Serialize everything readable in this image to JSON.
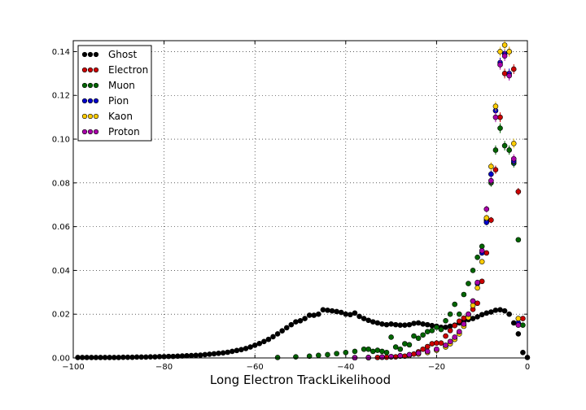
{
  "chart_data": {
    "type": "scatter",
    "title": "",
    "xlabel": "Long Electron TrackLikelihood",
    "ylabel": "",
    "xlim": [
      -100,
      0
    ],
    "ylim": [
      0,
      0.145
    ],
    "xticks": [
      -100,
      -80,
      -60,
      -40,
      -20,
      0
    ],
    "xtick_labels": [
      "−100",
      "−80",
      "−60",
      "−40",
      "−20",
      "0"
    ],
    "yticks": [
      0.0,
      0.02,
      0.04,
      0.06,
      0.08,
      0.1,
      0.12,
      0.14
    ],
    "ytick_labels": [
      "0.00",
      "0.02",
      "0.04",
      "0.06",
      "0.08",
      "0.10",
      "0.12",
      "0.14"
    ],
    "grid": true,
    "legend_position": "top-left",
    "series": [
      {
        "name": "Ghost",
        "color": "#000000",
        "points": [
          [
            -99,
            0.0002
          ],
          [
            -98,
            0.0002
          ],
          [
            -97,
            0.0002
          ],
          [
            -96,
            0.0002
          ],
          [
            -95,
            0.0002
          ],
          [
            -94,
            0.0002
          ],
          [
            -93,
            0.0002
          ],
          [
            -92,
            0.0002
          ],
          [
            -91,
            0.0002
          ],
          [
            -90,
            0.0002
          ],
          [
            -89,
            0.0003
          ],
          [
            -88,
            0.0003
          ],
          [
            -87,
            0.0003
          ],
          [
            -86,
            0.0004
          ],
          [
            -85,
            0.0004
          ],
          [
            -84,
            0.0004
          ],
          [
            -83,
            0.0005
          ],
          [
            -82,
            0.0005
          ],
          [
            -81,
            0.0006
          ],
          [
            -80,
            0.0006
          ],
          [
            -79,
            0.0007
          ],
          [
            -78,
            0.0007
          ],
          [
            -77,
            0.0008
          ],
          [
            -76,
            0.0009
          ],
          [
            -75,
            0.001
          ],
          [
            -74,
            0.0011
          ],
          [
            -73,
            0.0012
          ],
          [
            -72,
            0.0013
          ],
          [
            -71,
            0.0015
          ],
          [
            -70,
            0.0017
          ],
          [
            -69,
            0.0019
          ],
          [
            -68,
            0.0021
          ],
          [
            -67,
            0.0023
          ],
          [
            -66,
            0.0026
          ],
          [
            -65,
            0.003
          ],
          [
            -64,
            0.0034
          ],
          [
            -63,
            0.0038
          ],
          [
            -62,
            0.0043
          ],
          [
            -61,
            0.005
          ],
          [
            -60,
            0.0058
          ],
          [
            -59,
            0.0066
          ],
          [
            -58,
            0.0075
          ],
          [
            -57,
            0.0085
          ],
          [
            -56,
            0.0097
          ],
          [
            -55,
            0.011
          ],
          [
            -54,
            0.0124
          ],
          [
            -53,
            0.0138
          ],
          [
            -52,
            0.0152
          ],
          [
            -51,
            0.0165
          ],
          [
            -50,
            0.017
          ],
          [
            -49,
            0.018
          ],
          [
            -48,
            0.0195
          ],
          [
            -47,
            0.0195
          ],
          [
            -46,
            0.02
          ],
          [
            -45,
            0.022
          ],
          [
            -44,
            0.0218
          ],
          [
            -43,
            0.0215
          ],
          [
            -42,
            0.0212
          ],
          [
            -41,
            0.0208
          ],
          [
            -40,
            0.02
          ],
          [
            -39,
            0.0198
          ],
          [
            -38,
            0.0205
          ],
          [
            -37,
            0.019
          ],
          [
            -36,
            0.018
          ],
          [
            -35,
            0.0172
          ],
          [
            -34,
            0.0165
          ],
          [
            -33,
            0.016
          ],
          [
            -32,
            0.0155
          ],
          [
            -31,
            0.0152
          ],
          [
            -30,
            0.0155
          ],
          [
            -29,
            0.0152
          ],
          [
            -28,
            0.015
          ],
          [
            -27,
            0.015
          ],
          [
            -26,
            0.0152
          ],
          [
            -25,
            0.0158
          ],
          [
            -24,
            0.016
          ],
          [
            -23,
            0.0155
          ],
          [
            -22,
            0.0152
          ],
          [
            -21,
            0.0148
          ],
          [
            -20,
            0.0145
          ],
          [
            -19,
            0.014
          ],
          [
            -18,
            0.014
          ],
          [
            -17,
            0.0145
          ],
          [
            -16,
            0.015
          ],
          [
            -15,
            0.016
          ],
          [
            -14,
            0.0168
          ],
          [
            -13,
            0.0175
          ],
          [
            -12,
            0.018
          ],
          [
            -11,
            0.0188
          ],
          [
            -10,
            0.0198
          ],
          [
            -9,
            0.0205
          ],
          [
            -8,
            0.021
          ],
          [
            -7,
            0.0218
          ],
          [
            -6,
            0.022
          ],
          [
            -5,
            0.0215
          ],
          [
            -4,
            0.02
          ],
          [
            -3,
            0.016
          ],
          [
            -2,
            0.011
          ],
          [
            -1,
            0.0025
          ],
          [
            0,
            0.0002
          ]
        ]
      },
      {
        "name": "Electron",
        "color": "#cc0000",
        "points": [
          [
            -35,
            0.0001
          ],
          [
            -33,
            0.0002
          ],
          [
            -31,
            0.0003
          ],
          [
            -29,
            0.0005
          ],
          [
            -27,
            0.0008
          ],
          [
            -26,
            0.0012
          ],
          [
            -25,
            0.0018
          ],
          [
            -24,
            0.0028
          ],
          [
            -23,
            0.004
          ],
          [
            -22,
            0.0052
          ],
          [
            -21,
            0.0065
          ],
          [
            -20,
            0.0068
          ],
          [
            -19,
            0.0068
          ],
          [
            -18,
            0.01
          ],
          [
            -17,
            0.0125
          ],
          [
            -16,
            0.0148
          ],
          [
            -15,
            0.0168
          ],
          [
            -14,
            0.0182
          ],
          [
            -13,
            0.02
          ],
          [
            -12,
            0.0222
          ],
          [
            -11,
            0.025
          ],
          [
            -10,
            0.035
          ],
          [
            -9,
            0.048
          ],
          [
            -8,
            0.063
          ],
          [
            -7,
            0.086
          ],
          [
            -6,
            0.11
          ],
          [
            -5,
            0.13
          ],
          [
            -4,
            0.14
          ],
          [
            -3,
            0.132
          ],
          [
            -2,
            0.076
          ],
          [
            -1,
            0.018
          ]
        ]
      },
      {
        "name": "Muon",
        "color": "#006600",
        "points": [
          [
            -55,
            0.0002
          ],
          [
            -51,
            0.0005
          ],
          [
            -48,
            0.0008
          ],
          [
            -46,
            0.0012
          ],
          [
            -44,
            0.0015
          ],
          [
            -42,
            0.002
          ],
          [
            -40,
            0.0025
          ],
          [
            -38,
            0.003
          ],
          [
            -36,
            0.004
          ],
          [
            -35,
            0.004
          ],
          [
            -34,
            0.003
          ],
          [
            -33,
            0.0035
          ],
          [
            -32,
            0.003
          ],
          [
            -31,
            0.0025
          ],
          [
            -30,
            0.0095
          ],
          [
            -29,
            0.005
          ],
          [
            -28,
            0.004
          ],
          [
            -27,
            0.0065
          ],
          [
            -26,
            0.006
          ],
          [
            -25,
            0.01
          ],
          [
            -24,
            0.009
          ],
          [
            -23,
            0.0105
          ],
          [
            -22,
            0.012
          ],
          [
            -21,
            0.0125
          ],
          [
            -20,
            0.014
          ],
          [
            -19,
            0.013
          ],
          [
            -18,
            0.017
          ],
          [
            -17,
            0.02
          ],
          [
            -16,
            0.0245
          ],
          [
            -15,
            0.02
          ],
          [
            -14,
            0.029
          ],
          [
            -13,
            0.034
          ],
          [
            -12,
            0.04
          ],
          [
            -11,
            0.046
          ],
          [
            -10,
            0.051
          ],
          [
            -9,
            0.063
          ],
          [
            -8,
            0.08
          ],
          [
            -7,
            0.095
          ],
          [
            -6,
            0.105
          ],
          [
            -5,
            0.097
          ],
          [
            -4,
            0.095
          ],
          [
            -3,
            0.089
          ],
          [
            -2,
            0.054
          ],
          [
            -1,
            0.015
          ]
        ]
      },
      {
        "name": "Pion",
        "color": "#0000cc",
        "points": [
          [
            -38,
            0.0001
          ],
          [
            -35,
            0.0002
          ],
          [
            -32,
            0.0004
          ],
          [
            -30,
            0.0006
          ],
          [
            -28,
            0.001
          ],
          [
            -26,
            0.0014
          ],
          [
            -24,
            0.002
          ],
          [
            -22,
            0.0028
          ],
          [
            -20,
            0.0038
          ],
          [
            -18,
            0.0055
          ],
          [
            -17,
            0.007
          ],
          [
            -16,
            0.009
          ],
          [
            -15,
            0.0115
          ],
          [
            -14,
            0.015
          ],
          [
            -13,
            0.0195
          ],
          [
            -12,
            0.026
          ],
          [
            -11,
            0.034
          ],
          [
            -10,
            0.048
          ],
          [
            -9,
            0.062
          ],
          [
            -8,
            0.084
          ],
          [
            -7,
            0.113
          ],
          [
            -6,
            0.135
          ],
          [
            -5,
            0.139
          ],
          [
            -4,
            0.13
          ],
          [
            -3,
            0.09
          ],
          [
            -2,
            0.016
          ]
        ]
      },
      {
        "name": "Kaon",
        "color": "#ffcc00",
        "points": [
          [
            -38,
            0.0001
          ],
          [
            -35,
            0.0002
          ],
          [
            -32,
            0.0003
          ],
          [
            -30,
            0.0005
          ],
          [
            -28,
            0.0008
          ],
          [
            -26,
            0.0012
          ],
          [
            -24,
            0.0018
          ],
          [
            -22,
            0.0025
          ],
          [
            -20,
            0.0035
          ],
          [
            -18,
            0.005
          ],
          [
            -17,
            0.0065
          ],
          [
            -16,
            0.0085
          ],
          [
            -15,
            0.011
          ],
          [
            -14,
            0.0145
          ],
          [
            -13,
            0.0185
          ],
          [
            -12,
            0.024
          ],
          [
            -11,
            0.032
          ],
          [
            -10,
            0.044
          ],
          [
            -9,
            0.064
          ],
          [
            -8,
            0.0875
          ],
          [
            -7,
            0.115
          ],
          [
            -6,
            0.14
          ],
          [
            -5,
            0.143
          ],
          [
            -4,
            0.14
          ],
          [
            -3,
            0.098
          ],
          [
            -2,
            0.018
          ]
        ]
      },
      {
        "name": "Proton",
        "color": "#aa00aa",
        "points": [
          [
            -38,
            0.0001
          ],
          [
            -35,
            0.0002
          ],
          [
            -32,
            0.0004
          ],
          [
            -30,
            0.0006
          ],
          [
            -28,
            0.001
          ],
          [
            -26,
            0.0015
          ],
          [
            -24,
            0.0022
          ],
          [
            -22,
            0.003
          ],
          [
            -20,
            0.004
          ],
          [
            -18,
            0.0058
          ],
          [
            -17,
            0.0075
          ],
          [
            -16,
            0.0095
          ],
          [
            -15,
            0.012
          ],
          [
            -14,
            0.0155
          ],
          [
            -13,
            0.02
          ],
          [
            -12,
            0.026
          ],
          [
            -11,
            0.0345
          ],
          [
            -10,
            0.049
          ],
          [
            -9,
            0.068
          ],
          [
            -8,
            0.081
          ],
          [
            -7,
            0.11
          ],
          [
            -6,
            0.134
          ],
          [
            -5,
            0.138
          ],
          [
            -4,
            0.129
          ],
          [
            -3,
            0.091
          ],
          [
            -2,
            0.015
          ]
        ]
      }
    ]
  }
}
